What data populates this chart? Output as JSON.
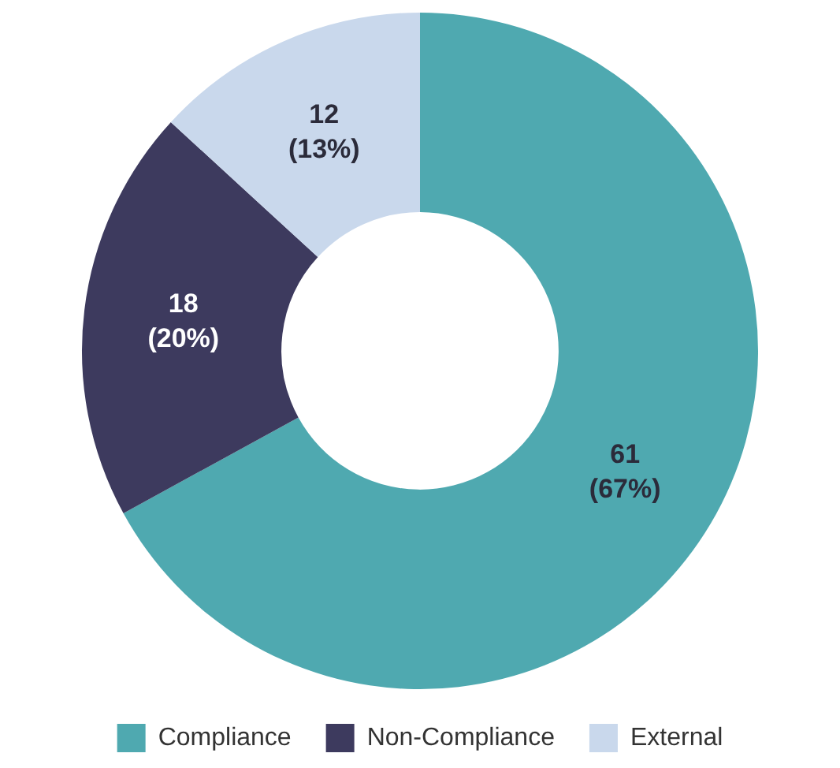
{
  "chart_data": {
    "type": "donut",
    "categories": [
      "Compliance",
      "Non-Compliance",
      "External"
    ],
    "values": [
      61,
      18,
      12
    ],
    "colors": [
      "#4fa9b0",
      "#3d3a5e",
      "#c9d8ec"
    ],
    "value_labels": [
      "61\n(67%)",
      "18\n(20%)",
      "12\n(13%)"
    ],
    "legend": "bottom"
  }
}
